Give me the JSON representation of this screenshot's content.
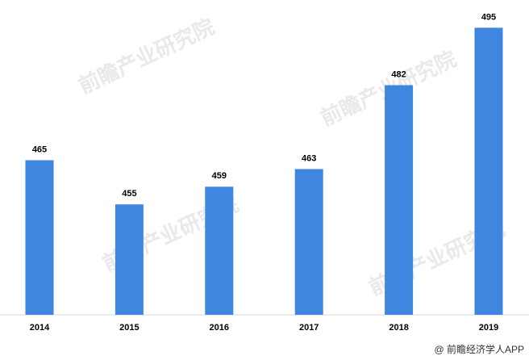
{
  "chart_data": {
    "type": "bar",
    "categories": [
      "2014",
      "2015",
      "2016",
      "2017",
      "2018",
      "2019"
    ],
    "values": [
      465,
      455,
      459,
      463,
      482,
      495
    ],
    "color": "#3e86e0",
    "ylim": [
      430,
      500
    ],
    "watermark": "前瞻产业研究院",
    "source": "@ 前瞻经济学人APP"
  }
}
